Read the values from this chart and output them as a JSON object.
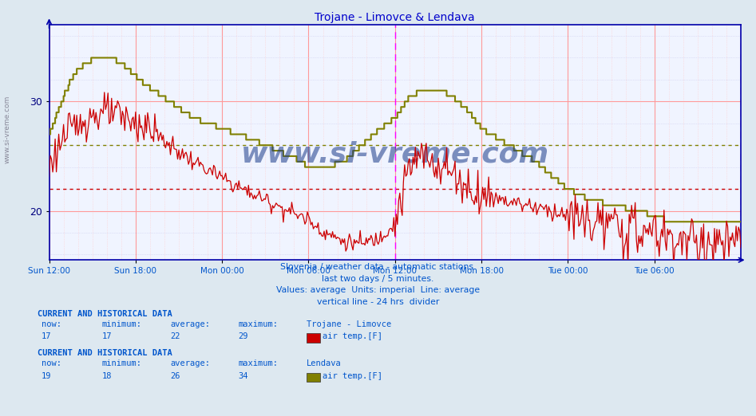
{
  "title": "Trojane - Limovce & Lendava",
  "bg_color": "#dde8f0",
  "plot_bg_color": "#f0f4ff",
  "grid_color_major": "#ff9999",
  "grid_color_minor": "#ffcccc",
  "grid_dot_color": "#ddddee",
  "xlabel_color": "#0055cc",
  "ylabel_color": "#000080",
  "title_color": "#0000cc",
  "ymin": 15.5,
  "ymax": 37.0,
  "yticks": [
    20,
    30
  ],
  "xtick_labels": [
    "Sun 12:00",
    "Sun 18:00",
    "Mon 00:00",
    "Mon 06:00",
    "Mon 12:00",
    "Mon 18:00",
    "Tue 00:00",
    "Tue 06:00"
  ],
  "xtick_positions": [
    0,
    72,
    144,
    216,
    288,
    360,
    432,
    504
  ],
  "total_points": 577,
  "vline_pos": 288,
  "avg_trojane": 22,
  "avg_lendava": 26,
  "trojane_color": "#cc0000",
  "lendava_color": "#808000",
  "watermark": "www.si-vreme.com",
  "watermark_color": "#1a3a8a",
  "footer_line1": "Slovenia / weather data - automatic stations.",
  "footer_line2": "last two days / 5 minutes.",
  "footer_line3": "Values: average  Units: imperial  Line: average",
  "footer_line4": "vertical line - 24 hrs  divider",
  "station1_label": "Trojane - Limovce",
  "station1_now": 17,
  "station1_min": 17,
  "station1_avg": 22,
  "station1_max": 29,
  "station1_var": "air temp.[F]",
  "station1_color": "#cc0000",
  "station2_label": "Lendava",
  "station2_now": 19,
  "station2_min": 18,
  "station2_avg": 26,
  "station2_max": 34,
  "station2_var": "air temp.[F]",
  "station2_color": "#808000"
}
